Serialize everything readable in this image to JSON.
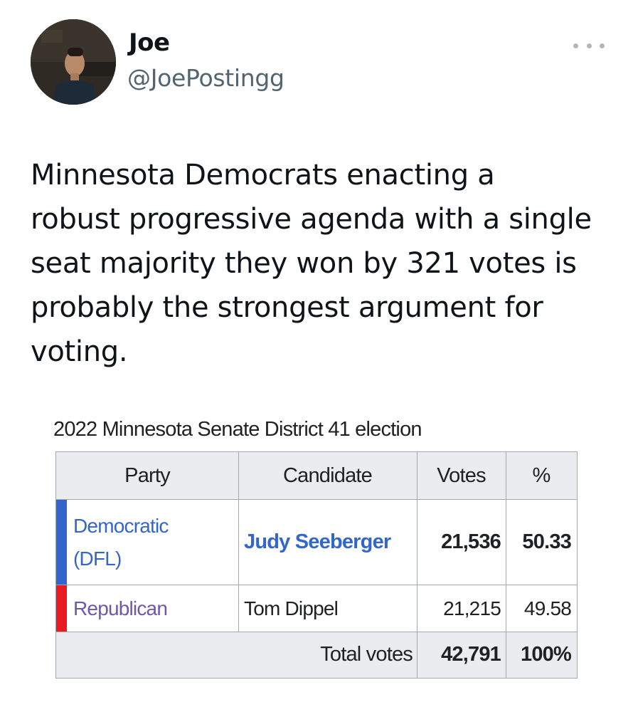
{
  "tweet": {
    "author": {
      "display_name": "Joe",
      "handle": "@JoePostingg",
      "avatar_icon": "profile-photo"
    },
    "more_icon": "ellipsis-icon",
    "text_lines": [
      "Minnesota Democrats enacting a",
      "robust progressive agenda with a single",
      "seat majority they won by 321 votes is",
      "probably the strongest argument for",
      "voting."
    ]
  },
  "election_table": {
    "caption": "2022 Minnesota Senate District 41 election",
    "headers": {
      "party": "Party",
      "candidate": "Candidate",
      "votes": "Votes",
      "percent": "%"
    },
    "rows": [
      {
        "party_line1": "Democratic",
        "party_line2": "(DFL)",
        "party_color": "#3366cc",
        "stripe_color": "#3366cc",
        "candidate": "Judy Seeberger",
        "votes": "21,536",
        "percent": "50.33",
        "winner": true
      },
      {
        "party_line1": "Republican",
        "party_color": "#6a5aa8",
        "stripe_color": "#e81b23",
        "candidate": "Tom Dippel",
        "votes": "21,215",
        "percent": "49.58",
        "winner": false
      }
    ],
    "total": {
      "label": "Total votes",
      "votes": "42,791",
      "percent": "100%"
    }
  }
}
